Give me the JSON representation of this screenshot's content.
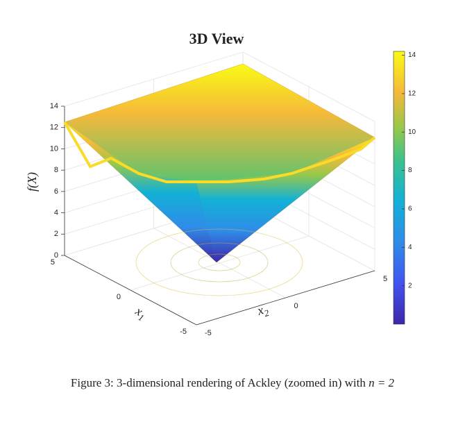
{
  "chart_data": {
    "type": "surface3d",
    "title": "3D View",
    "zlabel": "f(X)",
    "xlabel": {
      "text": "x",
      "sub": "1"
    },
    "ylabel": {
      "text": "x",
      "sub": "2"
    },
    "xlim": [
      -5,
      5
    ],
    "xticks": [
      -5,
      0,
      5
    ],
    "ylim": [
      -5,
      5
    ],
    "yticks": [
      -5,
      0,
      5
    ],
    "zlim": [
      0,
      14
    ],
    "zticks": [
      0,
      2,
      4,
      6,
      8,
      10,
      12,
      14
    ],
    "colormap": "parula",
    "clim": [
      0,
      14.2
    ],
    "cticks": [
      2,
      4,
      6,
      8,
      10,
      12,
      14
    ],
    "grid": true
  },
  "caption": {
    "text": "Figure 3: 3-dimensional rendering of Ackley (zoomed in) with ",
    "math": "n = 2"
  }
}
